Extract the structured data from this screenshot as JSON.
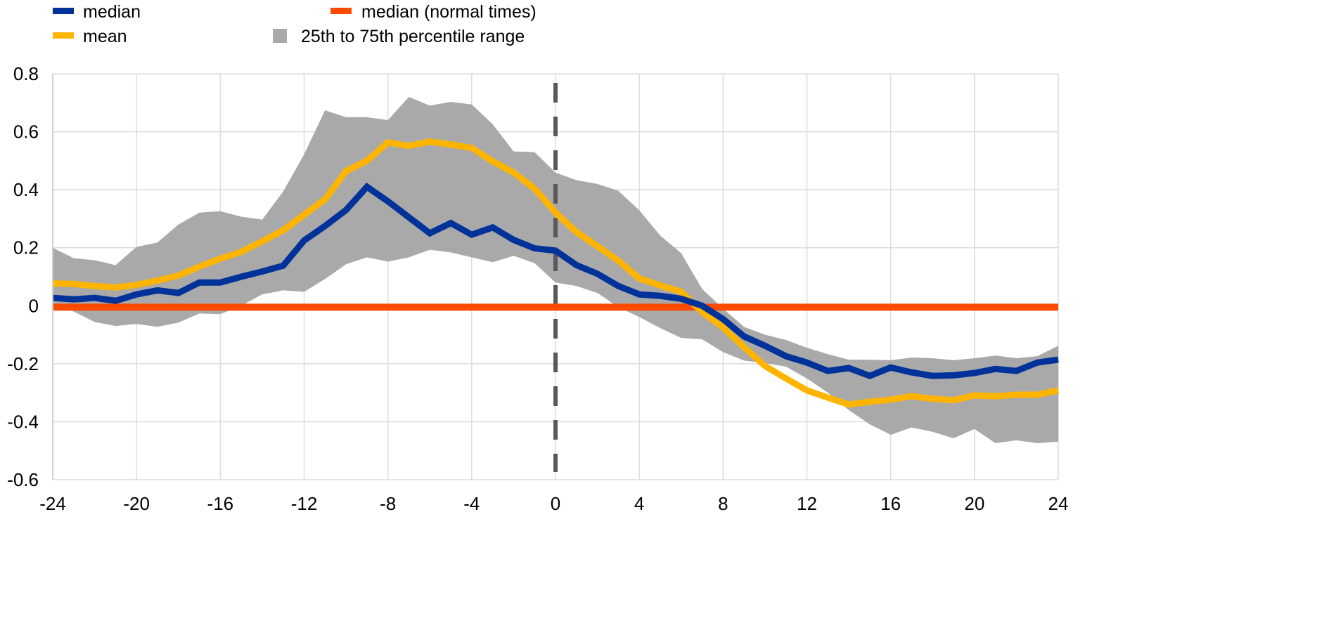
{
  "chart_data": {
    "type": "line",
    "title": "",
    "xlabel": "",
    "ylabel": "",
    "xlim": [
      -24,
      24
    ],
    "ylim": [
      -0.6,
      0.8
    ],
    "grid": true,
    "legend_position": "top-left",
    "x_ticks": [
      -24,
      -20,
      -16,
      -12,
      -8,
      -4,
      0,
      4,
      8,
      12,
      16,
      20,
      24
    ],
    "x_tick_labels": [
      "-24",
      "-20",
      "-16",
      "-12",
      "-8",
      "-4",
      "0",
      "4",
      "8",
      "12",
      "16",
      "20",
      "24"
    ],
    "y_ticks": [
      0.8,
      0.6,
      0.4,
      0.2,
      0,
      -0.2,
      -0.4,
      -0.6
    ],
    "y_tick_labels": [
      "0.8",
      "0.6",
      "0.4",
      "0.2",
      "0",
      "-0.2",
      "-0.4",
      "-0.6"
    ],
    "vertical_marker_x": 0,
    "x": [
      -24,
      -23,
      -22,
      -21,
      -20,
      -19,
      -18,
      -17,
      -16,
      -15,
      -14,
      -13,
      -12,
      -11,
      -10,
      -9,
      -8,
      -7,
      -6,
      -5,
      -4,
      -3,
      -2,
      -1,
      0,
      1,
      2,
      3,
      4,
      5,
      6,
      7,
      8,
      9,
      10,
      11,
      12,
      13,
      14,
      15,
      16,
      17,
      18,
      19,
      20,
      21,
      22,
      23,
      24
    ],
    "band": {
      "name": "25th to 75th percentile range",
      "color": "#a9a9a9",
      "upper": [
        0.2,
        0.164,
        0.157,
        0.14,
        0.203,
        0.218,
        0.28,
        0.321,
        0.326,
        0.307,
        0.297,
        0.394,
        0.522,
        0.674,
        0.65,
        0.65,
        0.64,
        0.72,
        0.69,
        0.703,
        0.694,
        0.626,
        0.532,
        0.53,
        0.459,
        0.433,
        0.42,
        0.396,
        0.329,
        0.242,
        0.181,
        0.058,
        -0.01,
        -0.073,
        -0.1,
        -0.118,
        -0.145,
        -0.167,
        -0.186,
        -0.186,
        -0.188,
        -0.179,
        -0.181,
        -0.188,
        -0.181,
        -0.172,
        -0.181,
        -0.174,
        -0.138
      ],
      "lower": [
        0,
        -0.02,
        -0.056,
        -0.07,
        -0.063,
        -0.073,
        -0.058,
        -0.027,
        -0.029,
        0,
        0.039,
        0.053,
        0.048,
        0.092,
        0.143,
        0.167,
        0.152,
        0.167,
        0.193,
        0.184,
        0.167,
        0.15,
        0.172,
        0.147,
        0.08,
        0.068,
        0.044,
        -0.005,
        -0.039,
        -0.077,
        -0.111,
        -0.116,
        -0.16,
        -0.189,
        -0.198,
        -0.21,
        -0.251,
        -0.3,
        -0.36,
        -0.409,
        -0.445,
        -0.42,
        -0.435,
        -0.457,
        -0.425,
        -0.474,
        -0.464,
        -0.474,
        -0.469
      ]
    },
    "series": [
      {
        "name": "median",
        "color": "#003299",
        "values": [
          0.027,
          0.022,
          0.027,
          0.017,
          0.039,
          0.053,
          0.044,
          0.08,
          0.08,
          0.1,
          0.118,
          0.138,
          0.225,
          0.275,
          0.33,
          0.41,
          0.36,
          0.305,
          0.25,
          0.285,
          0.245,
          0.27,
          0.227,
          0.198,
          0.19,
          0.14,
          0.11,
          0.068,
          0.039,
          0.034,
          0.024,
          0,
          -0.046,
          -0.106,
          -0.138,
          -0.174,
          -0.196,
          -0.225,
          -0.215,
          -0.242,
          -0.213,
          -0.23,
          -0.242,
          -0.24,
          -0.232,
          -0.218,
          -0.225,
          -0.196,
          -0.186
        ]
      },
      {
        "name": "mean",
        "color": "#ffb400",
        "values": [
          0.077,
          0.075,
          0.068,
          0.063,
          0.072,
          0.087,
          0.104,
          0.135,
          0.162,
          0.186,
          0.222,
          0.26,
          0.314,
          0.367,
          0.464,
          0.5,
          0.563,
          0.551,
          0.566,
          0.556,
          0.544,
          0.498,
          0.459,
          0.404,
          0.321,
          0.254,
          0.205,
          0.155,
          0.094,
          0.07,
          0.048,
          -0.022,
          -0.075,
          -0.143,
          -0.208,
          -0.251,
          -0.292,
          -0.317,
          -0.341,
          -0.331,
          -0.324,
          -0.312,
          -0.321,
          -0.326,
          -0.309,
          -0.312,
          -0.307,
          -0.307,
          -0.292
        ]
      },
      {
        "name": "median (normal times)",
        "color": "#ff4b00",
        "constant": -0.005
      }
    ],
    "legend": [
      {
        "label": "median",
        "color": "#003299",
        "shape": "line"
      },
      {
        "label": "mean",
        "color": "#ffb400",
        "shape": "line"
      },
      {
        "label": "median (normal times)",
        "color": "#ff4b00",
        "shape": "line"
      },
      {
        "label": "25th to 75th percentile range",
        "color": "#a9a9a9",
        "shape": "square"
      }
    ]
  }
}
